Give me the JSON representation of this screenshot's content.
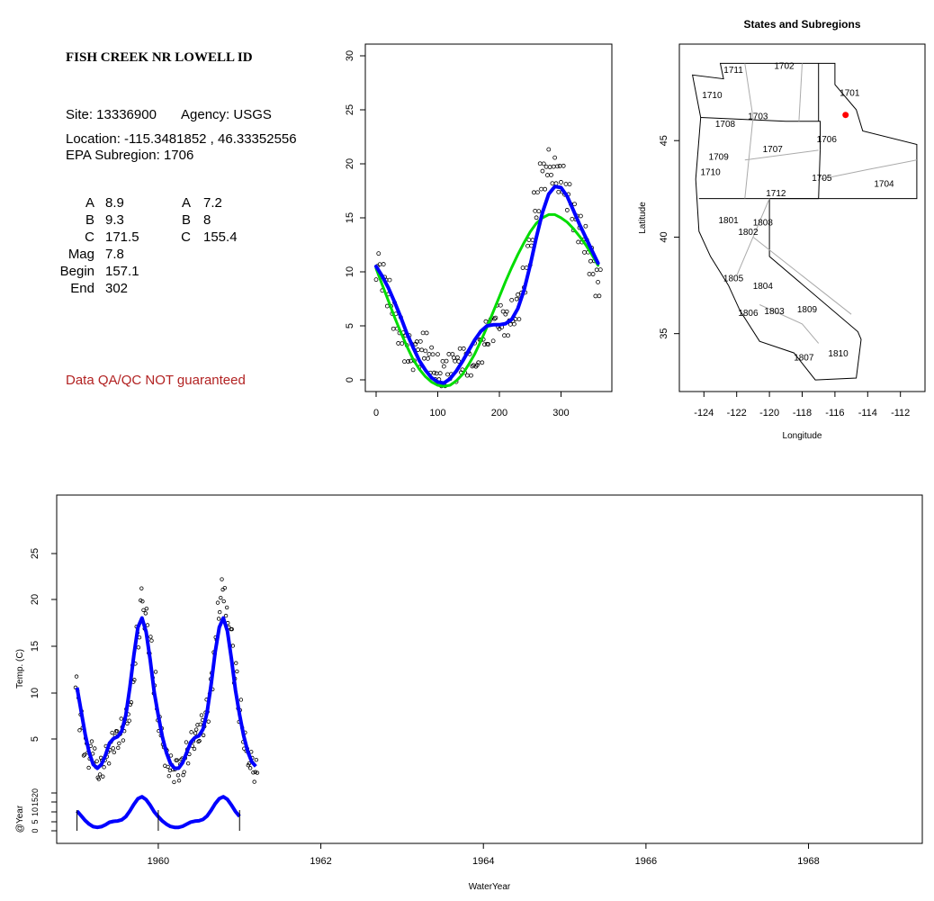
{
  "site": {
    "title": "FISH CREEK NR LOWELL ID",
    "site_line": "Site: 13336900",
    "agency_line": "Agency: USGS",
    "location_line": "Location: -115.3481852 , 46.33352556",
    "subregion_line": "EPA Subregion: 1706"
  },
  "params": {
    "left": [
      {
        "label": "A",
        "value": "8.9"
      },
      {
        "label": "B",
        "value": "9.3"
      },
      {
        "label": "C",
        "value": "171.5"
      },
      {
        "label": "Mag",
        "value": "7.8"
      },
      {
        "label": "Begin",
        "value": "157.1"
      },
      {
        "label": "End",
        "value": "302"
      }
    ],
    "right": [
      {
        "label": "A",
        "value": "7.2"
      },
      {
        "label": "B",
        "value": "8"
      },
      {
        "label": "C",
        "value": "155.4"
      }
    ]
  },
  "disclaimer": "Data QA/QC NOT guaranteed",
  "chart_data": [
    {
      "type": "scatter",
      "title": "",
      "xlabel": "",
      "ylabel": "",
      "xlim": [
        0,
        365
      ],
      "ylim": [
        0,
        30
      ],
      "xticks": [
        "0",
        "100",
        "200",
        "300"
      ],
      "yticks": [
        "0",
        "5",
        "10",
        "15",
        "20",
        "25",
        "30"
      ],
      "series": [
        {
          "kind": "points",
          "color": "#000000",
          "x": [
            0,
            10,
            20,
            30,
            40,
            50,
            60,
            70,
            80,
            90,
            100,
            110,
            120,
            130,
            140,
            150,
            160,
            170,
            180,
            190,
            200,
            210,
            220,
            230,
            240,
            250,
            260,
            270,
            280,
            290,
            300,
            310,
            320,
            330,
            340,
            350,
            360
          ],
          "y": [
            10.5,
            9.5,
            8,
            6,
            4.5,
            3,
            2,
            2.5,
            3,
            2,
            1,
            0.8,
            1,
            1.2,
            1.5,
            1.8,
            2,
            3,
            4,
            5,
            5.5,
            5.5,
            6,
            7,
            9,
            12,
            16,
            19,
            20,
            19.5,
            18.5,
            17,
            15,
            14,
            13,
            11,
            9
          ]
        },
        {
          "kind": "line",
          "color": "#00dd00",
          "x": [
            0,
            10,
            20,
            30,
            40,
            50,
            60,
            70,
            80,
            90,
            100,
            110,
            120,
            130,
            140,
            150,
            160,
            170,
            180,
            190,
            200,
            210,
            220,
            230,
            240,
            250,
            260,
            270,
            280,
            290,
            300,
            310,
            320,
            330,
            340,
            350,
            360
          ],
          "y": [
            10.3,
            8.8,
            7.3,
            5.8,
            4.4,
            3.1,
            1.9,
            1,
            0.3,
            -0.2,
            -0.5,
            -0.6,
            -0.5,
            -0.1,
            0.5,
            1.4,
            2.4,
            3.6,
            4.9,
            6.3,
            7.7,
            9.1,
            10.4,
            11.6,
            12.7,
            13.7,
            14.5,
            15,
            15.3,
            15.3,
            15,
            14.6,
            14,
            13.3,
            12.5,
            11.6,
            10.6
          ]
        },
        {
          "kind": "line",
          "color": "#0000ff",
          "x": [
            0,
            10,
            20,
            30,
            40,
            50,
            60,
            70,
            80,
            90,
            100,
            110,
            120,
            130,
            140,
            150,
            160,
            170,
            180,
            190,
            200,
            210,
            220,
            230,
            240,
            250,
            260,
            270,
            280,
            290,
            300,
            310,
            320,
            330,
            340,
            350,
            360
          ],
          "y": [
            10.5,
            9.6,
            8.5,
            7.2,
            5.8,
            4.3,
            3,
            1.8,
            0.9,
            0.2,
            -0.2,
            -0.3,
            0.1,
            0.8,
            1.7,
            2.7,
            3.7,
            4.5,
            5,
            5.1,
            5.1,
            5.2,
            5.6,
            6.6,
            8.3,
            10.6,
            13.2,
            15.5,
            17.2,
            17.9,
            17.8,
            17,
            15.7,
            14.4,
            13.2,
            12,
            10.8
          ]
        }
      ]
    },
    {
      "type": "map",
      "title": "States and Subregions",
      "xlabel": "Longitude",
      "ylabel": "Latitude",
      "xlim": [
        -125.5,
        -110.5
      ],
      "ylim": [
        32,
        50
      ],
      "xticks": [
        "-124",
        "-122",
        "-120",
        "-118",
        "-116",
        "-114",
        "-112"
      ],
      "yticks": [
        "35",
        "40",
        "45"
      ],
      "region_labels": [
        {
          "label": "1702",
          "lon": -119.1,
          "lat": 48.9
        },
        {
          "label": "1701",
          "lon": -115.1,
          "lat": 47.5
        },
        {
          "label": "1711",
          "lon": -122.2,
          "lat": 48.7
        },
        {
          "label": "1710",
          "lon": -123.5,
          "lat": 47.4
        },
        {
          "label": "1703",
          "lon": -120.7,
          "lat": 46.3
        },
        {
          "label": "1708",
          "lon": -122.7,
          "lat": 45.9
        },
        {
          "label": "1706",
          "lon": -116.5,
          "lat": 45.1
        },
        {
          "label": "1707",
          "lon": -119.8,
          "lat": 44.6
        },
        {
          "label": "1709",
          "lon": -123.1,
          "lat": 44.2
        },
        {
          "label": "1710",
          "lon": -123.6,
          "lat": 43.4
        },
        {
          "label": "1705",
          "lon": -116.8,
          "lat": 43.1
        },
        {
          "label": "1704",
          "lon": -113.0,
          "lat": 42.8
        },
        {
          "label": "1712",
          "lon": -119.6,
          "lat": 42.3
        },
        {
          "label": "1801",
          "lon": -122.5,
          "lat": 40.9
        },
        {
          "label": "1808",
          "lon": -120.4,
          "lat": 40.8
        },
        {
          "label": "1802",
          "lon": -121.3,
          "lat": 40.3
        },
        {
          "label": "1805",
          "lon": -122.2,
          "lat": 37.9
        },
        {
          "label": "1804",
          "lon": -120.4,
          "lat": 37.5
        },
        {
          "label": "1806",
          "lon": -121.3,
          "lat": 36.1
        },
        {
          "label": "1803",
          "lon": -119.7,
          "lat": 36.2
        },
        {
          "label": "1809",
          "lon": -117.7,
          "lat": 36.3
        },
        {
          "label": "1807",
          "lon": -117.9,
          "lat": 33.8
        },
        {
          "label": "1810",
          "lon": -115.8,
          "lat": 34.0
        }
      ],
      "site_point": {
        "lon": -115.35,
        "lat": 46.33,
        "color": "#ff0000"
      }
    },
    {
      "type": "line",
      "title": "",
      "xlabel": "WaterYear",
      "ylabel": "Temp. (C)",
      "ylabel2": "@Year",
      "xlim": [
        1958.75,
        1969.4
      ],
      "ylim": [
        0,
        30
      ],
      "xticks": [
        "1960",
        "1962",
        "1964",
        "1966",
        "1968"
      ],
      "yticks": [
        "5",
        "10",
        "15",
        "20",
        "25"
      ],
      "yticks2": [
        "0",
        "5",
        "10",
        "15",
        "20"
      ],
      "year_markers": [
        1959.0,
        1960.0,
        1961.0
      ],
      "series": [
        {
          "name": "",
          "kind": "points",
          "color": "#000000",
          "x": [
            1959.0,
            1959.05,
            1959.1,
            1959.15,
            1959.2,
            1959.25,
            1959.3,
            1959.35,
            1959.4,
            1959.45,
            1959.5,
            1959.55,
            1959.6,
            1959.65,
            1959.7,
            1959.75,
            1959.8,
            1959.85,
            1959.9,
            1959.95,
            1960.0,
            1960.05,
            1960.1,
            1960.15,
            1960.2,
            1960.25,
            1960.3,
            1960.35,
            1960.4,
            1960.45,
            1960.5,
            1960.55,
            1960.6,
            1960.65,
            1960.7,
            1960.75,
            1960.8,
            1960.85,
            1960.9,
            1960.95,
            1961.0,
            1961.05,
            1961.1,
            1961.15,
            1961.2
          ],
          "y": [
            10.5,
            7,
            4,
            3,
            3.5,
            1.5,
            2,
            3,
            3.5,
            4.5,
            5,
            6,
            7,
            8,
            12,
            16,
            20,
            18,
            15,
            11,
            7,
            5,
            3,
            2,
            1.5,
            1.5,
            2,
            3.5,
            4.5,
            5,
            5.5,
            6.5,
            8,
            11,
            15,
            19,
            21,
            18,
            16,
            12,
            8,
            5,
            3,
            2.5,
            1.5
          ]
        },
        {
          "name": "",
          "kind": "line",
          "color": "#0000ff",
          "x": [
            1959.0,
            1959.05,
            1959.1,
            1959.15,
            1959.2,
            1959.25,
            1959.3,
            1959.35,
            1959.4,
            1959.45,
            1959.5,
            1959.55,
            1959.6,
            1959.65,
            1959.7,
            1959.75,
            1959.8,
            1959.85,
            1959.9,
            1959.95,
            1960.0,
            1960.05,
            1960.1,
            1960.15,
            1960.2,
            1960.25,
            1960.3,
            1960.35,
            1960.4,
            1960.45,
            1960.5,
            1960.55,
            1960.6,
            1960.65,
            1960.7,
            1960.75,
            1960.8,
            1960.85,
            1960.9,
            1960.95,
            1961.0,
            1961.05,
            1961.1,
            1961.15,
            1961.2
          ],
          "y": [
            10.5,
            8,
            5.5,
            3.5,
            2.2,
            1.8,
            2.2,
            3.2,
            4.5,
            5,
            5.2,
            5.8,
            7.5,
            10.5,
            14,
            17,
            18,
            16.5,
            13.5,
            10,
            7.5,
            5.2,
            3.5,
            2.3,
            1.8,
            1.8,
            2.4,
            3.5,
            4.6,
            5.1,
            5.3,
            6,
            7.8,
            10.8,
            14.3,
            17,
            18,
            16.6,
            13.6,
            10.2,
            7.6,
            5.3,
            3.6,
            2.5,
            2
          ]
        },
        {
          "name": "",
          "kind": "annual",
          "color": "#0000ff",
          "x": [
            1959.0,
            1959.05,
            1959.1,
            1959.15,
            1959.2,
            1959.25,
            1959.3,
            1959.35,
            1959.4,
            1959.45,
            1959.5,
            1959.55,
            1959.6,
            1959.65,
            1959.7,
            1959.75,
            1959.8,
            1959.85,
            1959.9,
            1959.95,
            1960.0,
            1960.05,
            1960.1,
            1960.15,
            1960.2,
            1960.25,
            1960.3,
            1960.35,
            1960.4,
            1960.45,
            1960.5,
            1960.55,
            1960.6,
            1960.65,
            1960.7,
            1960.75,
            1960.8,
            1960.85,
            1960.9,
            1960.95,
            1961.0
          ],
          "y": [
            10.5,
            8,
            5.5,
            3.5,
            2.2,
            1.8,
            2.2,
            3.2,
            4.5,
            5,
            5.2,
            5.8,
            7.5,
            10.5,
            14,
            17,
            18,
            16.5,
            13.5,
            10,
            7.5,
            5.2,
            3.5,
            2.3,
            1.8,
            1.8,
            2.4,
            3.5,
            4.6,
            5.1,
            5.3,
            6,
            7.8,
            10.8,
            14.3,
            17,
            18,
            16.6,
            13.6,
            10.2,
            7.6
          ]
        }
      ]
    }
  ]
}
